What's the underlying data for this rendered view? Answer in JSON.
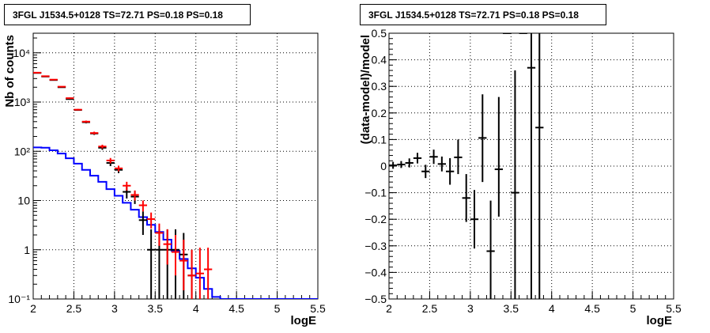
{
  "chart_data": [
    {
      "type": "step+errorbar",
      "title": "3FGL J1534.5+0128 TS=72.71 PS=0.18 PS=0.18",
      "xlabel": "logE",
      "ylabel": "Nb of counts",
      "xlim": [
        2,
        5.5
      ],
      "ylim": [
        0.1,
        25000
      ],
      "yscale": "log",
      "grid": true,
      "x_ticks": [
        "2",
        "2.5",
        "3",
        "3.5",
        "4",
        "4.5",
        "5",
        "5.5"
      ],
      "y_ticks": [
        {
          "value": 0.1,
          "label": "10⁻¹"
        },
        {
          "value": 1,
          "label": "1"
        },
        {
          "value": 10,
          "label": "10"
        },
        {
          "value": 100,
          "label": "10²"
        },
        {
          "value": 1000,
          "label": "10³"
        },
        {
          "value": 10000,
          "label": "10⁴"
        }
      ],
      "series": [
        {
          "color": "#0000ff",
          "style": "step",
          "x": [
            2.0,
            2.1,
            2.2,
            2.3,
            2.4,
            2.5,
            2.6,
            2.7,
            2.8,
            2.9,
            3.0,
            3.1,
            3.2,
            3.3,
            3.4,
            3.5,
            3.6,
            3.7,
            3.8,
            3.9,
            4.0,
            4.1,
            4.2,
            4.3,
            4.4,
            4.5,
            4.6,
            4.7,
            4.8,
            4.9,
            5.0,
            5.1,
            5.2,
            5.3,
            5.4
          ],
          "values": [
            120,
            118,
            105,
            90,
            72,
            56,
            42,
            32,
            24,
            17,
            12.5,
            9,
            6.5,
            4.6,
            3.2,
            2.3,
            1.6,
            0.95,
            0.65,
            0.42,
            0.27,
            0.16,
            0.11,
            0.1,
            0.1,
            0.1,
            0.1,
            0.1,
            0.1,
            0.1,
            0.1,
            0.1,
            0.1,
            0.1,
            0.1
          ]
        },
        {
          "color": "#000000",
          "style": "errorbar",
          "x": [
            2.05,
            2.15,
            2.25,
            2.35,
            2.45,
            2.55,
            2.65,
            2.75,
            2.85,
            2.95,
            3.05,
            3.15,
            3.25,
            3.35,
            3.45,
            3.55,
            3.65,
            3.75,
            3.85,
            3.95
          ],
          "values": [
            3900,
            3300,
            2800,
            2000,
            1150,
            690,
            390,
            230,
            118,
            58,
            42,
            15,
            12,
            4,
            1,
            1,
            1,
            1,
            0.8,
            0.3
          ],
          "err_low": [
            3840,
            3240,
            2745,
            1955,
            1115,
            665,
            370,
            215,
            107,
            50,
            36,
            11,
            8.5,
            2,
            0.1,
            0.1,
            0.1,
            0.1,
            0.1,
            0.1
          ],
          "err_high": [
            3960,
            3360,
            2855,
            2045,
            1185,
            715,
            410,
            245,
            129,
            66,
            48,
            19,
            15.5,
            6,
            2.6,
            2.6,
            2.6,
            2.6,
            2.2,
            1.0
          ]
        },
        {
          "color": "#ff0000",
          "style": "errorbar",
          "x": [
            2.05,
            2.15,
            2.25,
            2.35,
            2.45,
            2.55,
            2.65,
            2.75,
            2.85,
            2.95,
            3.05,
            3.15,
            3.25,
            3.35,
            3.45,
            3.55,
            3.65,
            3.75,
            3.85,
            3.95,
            4.05,
            4.15
          ],
          "values": [
            3950,
            3350,
            2850,
            2050,
            1200,
            700,
            400,
            235,
            125,
            65,
            45,
            20,
            13,
            8,
            4.2,
            2.2,
            1.3,
            0.9,
            0.6,
            0.3,
            0.33,
            0.4
          ],
          "err_low": [
            3890,
            3290,
            2795,
            2005,
            1165,
            675,
            380,
            220,
            114,
            57,
            39,
            16,
            10,
            6,
            2.7,
            1.2,
            0.5,
            0.3,
            0.15,
            0.1,
            0.1,
            0.1
          ],
          "err_high": [
            4010,
            3410,
            2905,
            2095,
            1235,
            725,
            420,
            250,
            136,
            73,
            51,
            24,
            16,
            10,
            5.7,
            3.4,
            2.6,
            2.0,
            1.6,
            1.0,
            1.1,
            1.1
          ]
        }
      ]
    },
    {
      "type": "errorbar",
      "title": "3FGL J1534.5+0128 TS=72.71 PS=0.18 PS=0.18",
      "xlabel": "logE",
      "ylabel": "(data-model)/model",
      "xlim": [
        2,
        5.5
      ],
      "ylim": [
        -0.5,
        0.5
      ],
      "grid": true,
      "x_ticks": [
        "2",
        "2.5",
        "3",
        "3.5",
        "4",
        "4.5",
        "5",
        "5.5"
      ],
      "y_ticks": [
        "−0.5",
        "−0.4",
        "−0.3",
        "−0.2",
        "−0.1",
        "0",
        "0.1",
        "0.2",
        "0.3",
        "0.4",
        "0.5"
      ],
      "series": [
        {
          "color": "#000000",
          "style": "errorbar",
          "x": [
            2.05,
            2.15,
            2.25,
            2.35,
            2.45,
            2.55,
            2.65,
            2.75,
            2.85,
            2.95,
            3.05,
            3.15,
            3.25,
            3.35,
            3.45,
            3.55,
            3.65,
            3.75,
            3.85
          ],
          "values": [
            0.003,
            0.006,
            0.012,
            0.03,
            -0.02,
            0.035,
            0.008,
            -0.02,
            0.033,
            -0.12,
            -0.2,
            0.106,
            -0.32,
            -0.012,
            0.5,
            -0.1,
            0.5,
            0.37,
            0.145
          ],
          "err_low": [
            -0.01,
            -0.007,
            -0.005,
            0.01,
            -0.045,
            0.008,
            -0.02,
            -0.07,
            -0.03,
            -0.21,
            -0.31,
            -0.06,
            -0.5,
            -0.19,
            0.5,
            -0.5,
            0.5,
            -0.5,
            -0.5
          ],
          "err_high": [
            0.016,
            0.019,
            0.029,
            0.05,
            0.005,
            0.062,
            0.036,
            0.03,
            0.1,
            -0.03,
            -0.09,
            0.27,
            -0.13,
            0.26,
            0.5,
            0.36,
            0.5,
            0.5,
            0.5
          ]
        }
      ]
    }
  ]
}
